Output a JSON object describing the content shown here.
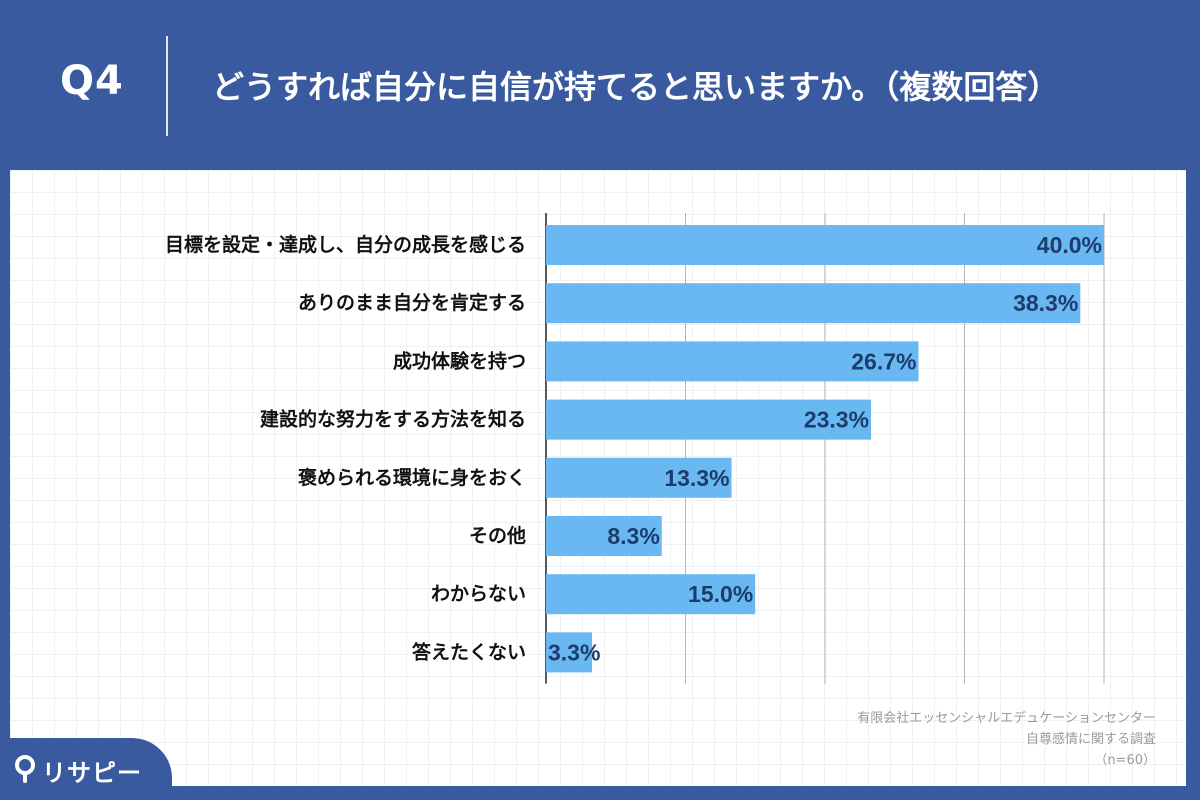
{
  "header": {
    "question_number": "Q4",
    "question": "どうすれば自分に自信が持てると思いますか。（複数回答）"
  },
  "colors": {
    "background": "#3a5aa0",
    "bar": "#6ab8f2",
    "bar_label": "#1c3d6b",
    "category_label": "#111111",
    "gridline": "#b5b5b5"
  },
  "chart_data": {
    "type": "bar",
    "orientation": "horizontal",
    "categories": [
      "目標を設定・達成し、自分の成長を感じる",
      "ありのまま自分を肯定する",
      "成功体験を持つ",
      "建設的な努力をする方法を知る",
      "褒められる環境に身をおく",
      "その他",
      "わからない",
      "答えたくない"
    ],
    "values": [
      40.0,
      38.3,
      26.7,
      23.3,
      13.3,
      8.3,
      15.0,
      3.3
    ],
    "data_labels": [
      "40.0%",
      "38.3%",
      "26.7%",
      "23.3%",
      "13.3%",
      "8.3%",
      "15.0%",
      "3.3%"
    ],
    "xlim": [
      0,
      40
    ],
    "gridlines": [
      0,
      10,
      20,
      30,
      40
    ],
    "grid": true,
    "legend": "none"
  },
  "source": {
    "line1": "有限会社エッセンシャルエデュケーションセンター",
    "line2": "自尊感情に関する調査",
    "line3": "（n=60）"
  },
  "logo": {
    "text": "リサピー",
    "icon": "pin-icon"
  }
}
